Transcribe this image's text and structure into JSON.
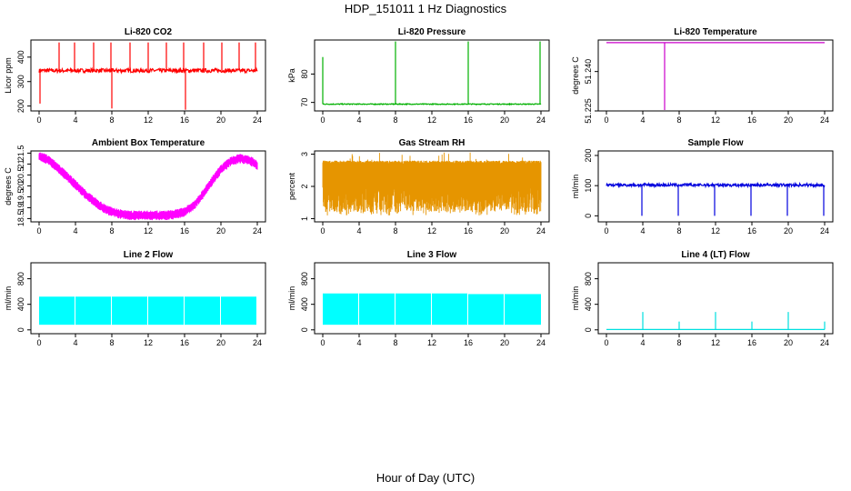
{
  "title": "HDP_151011  1 Hz Diagnostics",
  "xlabel": "Hour of Day (UTC)",
  "chart_data": [
    {
      "type": "line",
      "title": "Li-820 CO2",
      "ylabel": "Licor ppm",
      "color": "#ff0000",
      "xticks": [
        0,
        4,
        8,
        12,
        16,
        20,
        24
      ],
      "yticks": [
        200,
        300,
        400
      ],
      "xlim": [
        0,
        24
      ],
      "ylim": [
        180,
        470
      ],
      "baseline": 345,
      "noise": 8,
      "spikes": [
        {
          "x": 0.1,
          "y": 210
        },
        {
          "x": 2.2,
          "y": 460
        },
        {
          "x": 3.9,
          "y": 460
        },
        {
          "x": 6.0,
          "y": 460
        },
        {
          "x": 7.9,
          "y": 460
        },
        {
          "x": 8.0,
          "y": 190
        },
        {
          "x": 10.0,
          "y": 460
        },
        {
          "x": 12.0,
          "y": 460
        },
        {
          "x": 14.0,
          "y": 460
        },
        {
          "x": 15.9,
          "y": 460
        },
        {
          "x": 16.1,
          "y": 185
        },
        {
          "x": 18.1,
          "y": 460
        },
        {
          "x": 20.1,
          "y": 460
        },
        {
          "x": 22.0,
          "y": 460
        },
        {
          "x": 23.8,
          "y": 460
        }
      ]
    },
    {
      "type": "line",
      "title": "Li-820 Pressure",
      "ylabel": "kPa",
      "color": "#00b000",
      "xticks": [
        0,
        4,
        8,
        12,
        16,
        20,
        24
      ],
      "yticks": [
        70,
        80
      ],
      "xlim": [
        0,
        24
      ],
      "ylim": [
        67,
        92
      ],
      "baseline": 69.4,
      "noise": 0.15,
      "spikes": [
        {
          "x": 0.0,
          "y": 86
        },
        {
          "x": 8.0,
          "y": 91.5
        },
        {
          "x": 16.0,
          "y": 91.5
        },
        {
          "x": 23.9,
          "y": 91.5
        }
      ]
    },
    {
      "type": "line",
      "title": "Li-820 Temperature",
      "ylabel": "degrees C",
      "color": "#cc00cc",
      "xticks": [
        0,
        4,
        8,
        12,
        16,
        20,
        24
      ],
      "yticks": [
        51.225,
        51.24
      ],
      "xlim": [
        0,
        24
      ],
      "ylim": [
        51.225,
        51.252
      ],
      "baseline": 51.251,
      "noise": 0,
      "spikes": [
        {
          "x": 6.4,
          "y": 51.225
        }
      ]
    },
    {
      "type": "line",
      "title": "Ambient Box Temperature",
      "ylabel": "degrees C",
      "color": "#ff00ff",
      "xticks": [
        0,
        4,
        8,
        12,
        16,
        20,
        24
      ],
      "yticks": [
        18.5,
        19.0,
        19.5,
        20.0,
        20.5,
        21.0,
        21.5
      ],
      "xlim": [
        0,
        24
      ],
      "ylim": [
        18.35,
        21.6
      ],
      "x": [
        0,
        1,
        2,
        3,
        4,
        5,
        6,
        7,
        8,
        9,
        10,
        11,
        12,
        13,
        14,
        15,
        16,
        17,
        18,
        19,
        20,
        21,
        22,
        23,
        24
      ],
      "y": [
        21.35,
        21.2,
        20.85,
        20.45,
        20.05,
        19.65,
        19.3,
        19.0,
        18.8,
        18.7,
        18.65,
        18.65,
        18.65,
        18.65,
        18.65,
        18.7,
        18.8,
        19.1,
        19.6,
        20.2,
        20.75,
        21.1,
        21.25,
        21.2,
        20.95
      ],
      "noise": 0.22
    },
    {
      "type": "line",
      "title": "Gas Stream RH",
      "ylabel": "percent",
      "color": "#e69500",
      "xticks": [
        0,
        4,
        8,
        12,
        16,
        20,
        24
      ],
      "yticks": [
        1.0,
        2.0,
        3.0
      ],
      "xlim": [
        0,
        24
      ],
      "ylim": [
        0.9,
        3.1
      ],
      "band": [
        1.2,
        2.8
      ],
      "noise": 0.8
    },
    {
      "type": "line",
      "title": "Sample Flow",
      "ylabel": "ml/min",
      "color": "#0000dd",
      "xticks": [
        0,
        4,
        8,
        12,
        16,
        20,
        24
      ],
      "yticks": [
        0,
        100,
        200
      ],
      "xlim": [
        0,
        24
      ],
      "ylim": [
        -20,
        215
      ],
      "baseline": 102,
      "noise": 5,
      "spikes": [
        {
          "x": 3.9,
          "y": 0
        },
        {
          "x": 7.9,
          "y": 0
        },
        {
          "x": 11.9,
          "y": 0
        },
        {
          "x": 15.9,
          "y": 0
        },
        {
          "x": 19.9,
          "y": 0
        },
        {
          "x": 23.9,
          "y": 0
        }
      ]
    },
    {
      "type": "area",
      "title": "Line 2 Flow",
      "ylabel": "ml/min",
      "color": "#00ffff",
      "xticks": [
        0,
        4,
        8,
        12,
        16,
        20,
        24
      ],
      "yticks": [
        0,
        400,
        800
      ],
      "xlim": [
        0,
        24
      ],
      "ylim": [
        -60,
        1050
      ],
      "segments": [
        {
          "x0": 0,
          "x1": 3.9,
          "lo": 80,
          "hi": 520
        },
        {
          "x0": 4.0,
          "x1": 7.9,
          "lo": 80,
          "hi": 520
        },
        {
          "x0": 8.0,
          "x1": 11.9,
          "lo": 80,
          "hi": 520
        },
        {
          "x0": 12.0,
          "x1": 15.9,
          "lo": 80,
          "hi": 520
        },
        {
          "x0": 16.0,
          "x1": 19.9,
          "lo": 80,
          "hi": 520
        },
        {
          "x0": 20.0,
          "x1": 23.9,
          "lo": 80,
          "hi": 520
        }
      ]
    },
    {
      "type": "area",
      "title": "Line 3 Flow",
      "ylabel": "ml/min",
      "color": "#00ffff",
      "xticks": [
        0,
        4,
        8,
        12,
        16,
        20,
        24
      ],
      "yticks": [
        0,
        400,
        800
      ],
      "xlim": [
        0,
        24
      ],
      "ylim": [
        -60,
        1050
      ],
      "segments": [
        {
          "x0": 0,
          "x1": 3.9,
          "lo": 80,
          "hi": 570
        },
        {
          "x0": 4.0,
          "x1": 7.9,
          "lo": 80,
          "hi": 570
        },
        {
          "x0": 8.0,
          "x1": 11.9,
          "lo": 80,
          "hi": 570
        },
        {
          "x0": 12.0,
          "x1": 15.9,
          "lo": 80,
          "hi": 570
        },
        {
          "x0": 16.0,
          "x1": 19.9,
          "lo": 80,
          "hi": 560
        },
        {
          "x0": 20.0,
          "x1": 24.0,
          "lo": 80,
          "hi": 560
        }
      ]
    },
    {
      "type": "line",
      "title": "Line 4 (LT) Flow",
      "ylabel": "ml/min",
      "color": "#00e0e0",
      "xticks": [
        0,
        4,
        8,
        12,
        16,
        20,
        24
      ],
      "yticks": [
        0,
        400,
        800
      ],
      "xlim": [
        0,
        24
      ],
      "ylim": [
        -60,
        1050
      ],
      "baseline": 5,
      "noise": 0,
      "spikes": [
        {
          "x": 4.0,
          "y": 280
        },
        {
          "x": 8.0,
          "y": 130
        },
        {
          "x": 12.0,
          "y": 280
        },
        {
          "x": 16.0,
          "y": 130
        },
        {
          "x": 20.0,
          "y": 280
        },
        {
          "x": 24.0,
          "y": 130
        }
      ]
    }
  ]
}
